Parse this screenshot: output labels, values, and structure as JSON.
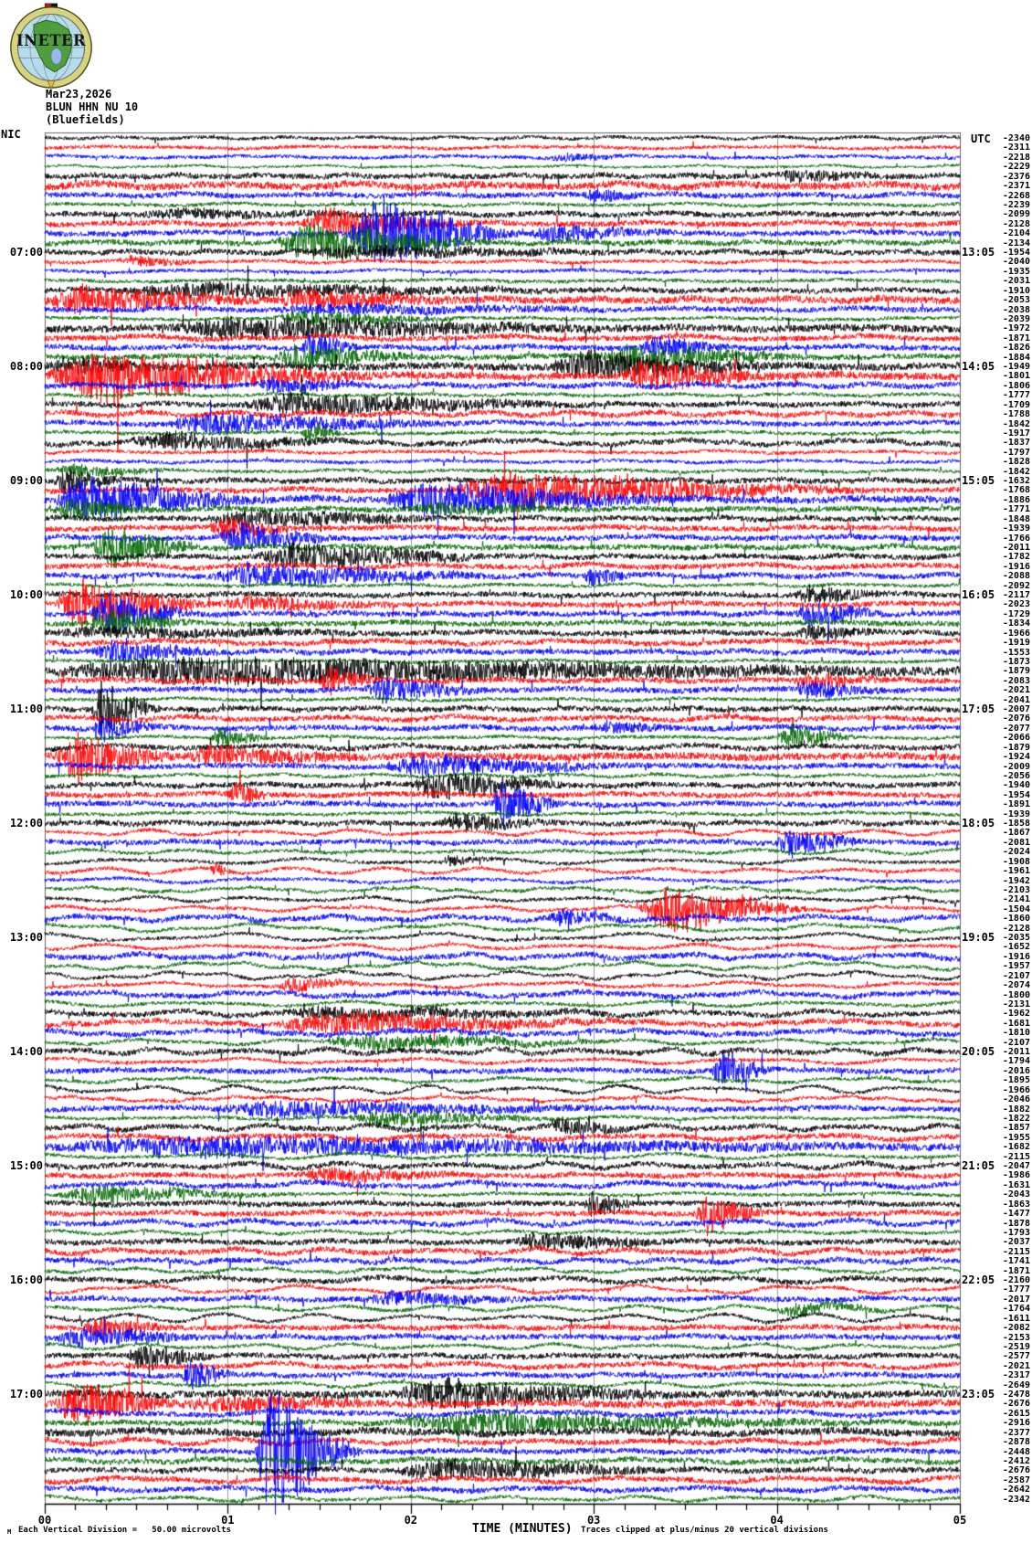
{
  "header": {
    "date": "Mar23,2026",
    "station": "BLUN HHN NU 10",
    "station_name": "(Bluefields)",
    "logo_text": "INETER"
  },
  "corner_labels": {
    "left": "NIC",
    "right": "UTC"
  },
  "left_times": [
    "07:00",
    "08:00",
    "09:00",
    "10:00",
    "11:00",
    "12:00",
    "13:00",
    "14:00",
    "15:00",
    "16:00",
    "17:00"
  ],
  "right_times": [
    "13:05",
    "14:05",
    "15:05",
    "16:05",
    "17:05",
    "18:05",
    "19:05",
    "20:05",
    "21:05",
    "22:05",
    "23:05"
  ],
  "axis": {
    "xlabel": "TIME (MINUTES)",
    "ticks": [
      "00",
      "01",
      "02",
      "03",
      "04",
      "05"
    ],
    "scale_note": "Each Vertical Division =   50.00 microvolts",
    "clip_note": "Traces clipped at plus/minus 20 vertical divisions",
    "corner_glyph": "M"
  },
  "colors": {
    "trace_cycle": [
      "#000000",
      "#ff0000",
      "#0000ff",
      "#006600"
    ],
    "grid": "#999999",
    "frame": "#666666",
    "axis": "#000000"
  },
  "chart_data": {
    "type": "line",
    "subtype": "seismogram-helicorder",
    "title": "BLUN HHN NU 10 (Bluefields) Mar23,2026",
    "xlabel": "TIME (MINUTES)",
    "x_ticks": [
      "00",
      "01",
      "02",
      "03",
      "04",
      "05"
    ],
    "minutes_per_row": 5,
    "rows": 144,
    "row_color_cycle": [
      "black",
      "red",
      "blue",
      "green"
    ],
    "scale": "Each Vertical Division = 50.00 microvolts",
    "clipping": "Traces clipped at plus/minus 20 vertical divisions",
    "trace_offsets": [
      -2340,
      -2311,
      -2218,
      -2229,
      -2376,
      -2371,
      -2268,
      -2239,
      -2099,
      -2128,
      -2104,
      -2134,
      -1954,
      -2040,
      -1935,
      -2031,
      -1910,
      -2053,
      -2038,
      -2039,
      -1972,
      -1871,
      -1826,
      -1884,
      -1949,
      -1801,
      -1806,
      -1777,
      -1709,
      -1788,
      -1842,
      -1917,
      -1837,
      -1797,
      -1828,
      -1842,
      -1632,
      -1768,
      -1886,
      -1771,
      -1848,
      -1939,
      -1766,
      -2011,
      -1782,
      -1916,
      -2088,
      -2092,
      -2117,
      -2023,
      -1729,
      -1834,
      -1966,
      -1919,
      -1553,
      -1873,
      -1879,
      -2083,
      -2021,
      -2041,
      -2007,
      -2076,
      -2077,
      -2066,
      -1879,
      -1924,
      -2009,
      -2056,
      -1940,
      -1954,
      -1891,
      -1939,
      -1858,
      -1867,
      -2081,
      -2024,
      -1908,
      -1961,
      -1942,
      -2103,
      -2141,
      -1504,
      -1860,
      -2128,
      -2035,
      -1652,
      -1916,
      -1957,
      -2107,
      -2074,
      -1800,
      -2131,
      -1962,
      -1681,
      -1810,
      -2107,
      -2011,
      -1794,
      -2016,
      -1895,
      -1966,
      -2046,
      -1882,
      -1822,
      -1857,
      -1955,
      -1682,
      -2115,
      -2047,
      -1986,
      -1631,
      -2043,
      -1863,
      -1477,
      -1878,
      -1793,
      -2037,
      -2115,
      -1741,
      -1871,
      -2160,
      -1777,
      -2017,
      -1764,
      -1611,
      -2082,
      -2153,
      -2519,
      -2577,
      -2021,
      -2317,
      -2649,
      -2478,
      -2676,
      -2615,
      -2916,
      -2377,
      -2878,
      -2448,
      -2412,
      -2676,
      -2587,
      -2642,
      -2342
    ],
    "activity": [
      [
        2,
        1
      ],
      [
        2,
        1
      ],
      [
        2,
        1,
        [
          550,
          650,
          4
        ]
      ],
      [
        1.5,
        1
      ],
      [
        3,
        1,
        [
          800,
          930,
          6
        ]
      ],
      [
        4,
        1.5
      ],
      [
        3,
        1,
        [
          590,
          660,
          8
        ]
      ],
      [
        2,
        1
      ],
      [
        3,
        1,
        [
          100,
          400,
          4
        ]
      ],
      [
        3,
        1,
        [
          280,
          480,
          18
        ]
      ],
      [
        3,
        1,
        [
          330,
          530,
          42
        ],
        [
          530,
          700,
          10
        ]
      ],
      [
        3,
        1,
        [
          250,
          500,
          22
        ]
      ],
      [
        3,
        1,
        [
          280,
          660,
          6
        ]
      ],
      [
        2,
        1,
        [
          80,
          180,
          6
        ]
      ],
      [
        2,
        1
      ],
      [
        2,
        1
      ],
      [
        3,
        1,
        [
          80,
          620,
          7
        ]
      ],
      [
        4,
        1,
        [
          0,
          250,
          16
        ],
        [
          250,
          470,
          10
        ]
      ],
      [
        3,
        1,
        [
          250,
          650,
          5
        ]
      ],
      [
        2,
        1,
        [
          250,
          470,
          9
        ]
      ],
      [
        4,
        1,
        [
          130,
          650,
          12
        ]
      ],
      [
        3,
        1.5
      ],
      [
        3,
        1,
        [
          280,
          350,
          16
        ],
        [
          650,
          760,
          12
        ]
      ],
      [
        3,
        1,
        [
          250,
          430,
          14
        ],
        [
          600,
          850,
          14
        ]
      ],
      [
        4,
        1,
        [
          0,
          150,
          8
        ],
        [
          550,
          810,
          16
        ]
      ],
      [
        4,
        1,
        [
          0,
          380,
          30
        ],
        [
          630,
          810,
          18
        ]
      ],
      [
        3,
        1,
        [
          230,
          370,
          8
        ]
      ],
      [
        2,
        1
      ],
      [
        3,
        1,
        [
          210,
          610,
          12
        ]
      ],
      [
        3,
        1.5
      ],
      [
        3,
        1,
        [
          130,
          470,
          12
        ]
      ],
      [
        2,
        1,
        [
          280,
          330,
          10
        ]
      ],
      [
        3,
        2,
        [
          90,
          350,
          10
        ]
      ],
      [
        2,
        1
      ],
      [
        2,
        1
      ],
      [
        2,
        1,
        [
          10,
          150,
          7
        ]
      ],
      [
        3,
        1,
        [
          10,
          90,
          14
        ]
      ],
      [
        3,
        1,
        [
          440,
          930,
          20
        ]
      ],
      [
        4,
        1,
        [
          10,
          250,
          24
        ],
        [
          370,
          710,
          20
        ]
      ],
      [
        3,
        1,
        [
          10,
          130,
          12
        ],
        [
          400,
          600,
          6
        ]
      ],
      [
        3,
        1,
        [
          180,
          470,
          10
        ]
      ],
      [
        3,
        1,
        [
          180,
          280,
          12
        ]
      ],
      [
        3,
        1,
        [
          190,
          330,
          18
        ]
      ],
      [
        3,
        1,
        [
          50,
          180,
          26
        ]
      ],
      [
        3,
        1,
        [
          230,
          510,
          16
        ]
      ],
      [
        3,
        1.5
      ],
      [
        3,
        1,
        [
          180,
          510,
          14
        ],
        [
          590,
          650,
          10
        ]
      ],
      [
        2,
        1
      ],
      [
        3,
        1,
        [
          820,
          930,
          10
        ]
      ],
      [
        3,
        1,
        [
          10,
          190,
          30
        ],
        [
          190,
          400,
          8
        ]
      ],
      [
        3,
        1,
        [
          50,
          170,
          24
        ],
        [
          820,
          930,
          14
        ]
      ],
      [
        3,
        1,
        [
          50,
          170,
          16
        ]
      ],
      [
        3,
        1,
        [
          0,
          400,
          5
        ],
        [
          820,
          930,
          8
        ]
      ],
      [
        3,
        1.5
      ],
      [
        3,
        1,
        [
          50,
          210,
          12
        ]
      ],
      [
        2,
        1
      ],
      [
        5,
        1,
        [
          10,
          990,
          14
        ]
      ],
      [
        3,
        1,
        [
          300,
          370,
          16
        ],
        [
          820,
          930,
          8
        ]
      ],
      [
        3,
        1,
        [
          350,
          490,
          14
        ],
        [
          820,
          930,
          10
        ]
      ],
      [
        2,
        1
      ],
      [
        3,
        1,
        [
          50,
          130,
          34
        ]
      ],
      [
        3,
        1.5
      ],
      [
        3,
        1,
        [
          50,
          130,
          14
        ],
        [
          600,
          700,
          6
        ]
      ],
      [
        2,
        1,
        [
          180,
          250,
          12
        ],
        [
          800,
          900,
          14
        ]
      ],
      [
        3,
        1.5
      ],
      [
        4,
        1,
        [
          10,
          150,
          28
        ],
        [
          150,
          370,
          10
        ]
      ],
      [
        3,
        1,
        [
          370,
          650,
          12
        ]
      ],
      [
        2,
        1
      ],
      [
        3,
        1,
        [
          400,
          590,
          16
        ]
      ],
      [
        3,
        1,
        [
          200,
          250,
          14
        ]
      ],
      [
        3,
        1,
        [
          490,
          570,
          28
        ]
      ],
      [
        2,
        1
      ],
      [
        3,
        1,
        [
          430,
          570,
          10
        ]
      ],
      [
        2,
        2
      ],
      [
        3,
        1,
        [
          800,
          900,
          18
        ]
      ],
      [
        2,
        2
      ],
      [
        2,
        2,
        [
          430,
          510,
          5
        ]
      ],
      [
        2,
        2,
        [
          180,
          210,
          8
        ]
      ],
      [
        2,
        2
      ],
      [
        2,
        2
      ],
      [
        2,
        2
      ],
      [
        2,
        2,
        [
          650,
          850,
          30
        ]
      ],
      [
        3,
        2,
        [
          550,
          650,
          8
        ]
      ],
      [
        2,
        3
      ],
      [
        2,
        3
      ],
      [
        2,
        2
      ],
      [
        3,
        2
      ],
      [
        2,
        3
      ],
      [
        2,
        3
      ],
      [
        2,
        2,
        [
          250,
          370,
          8
        ]
      ],
      [
        3,
        2
      ],
      [
        2,
        2
      ],
      [
        3,
        2,
        [
          250,
          650,
          6
        ]
      ],
      [
        3,
        2,
        [
          250,
          650,
          12
        ]
      ],
      [
        3,
        2
      ],
      [
        2,
        2,
        [
          300,
          650,
          10
        ]
      ],
      [
        3,
        2
      ],
      [
        2,
        2
      ],
      [
        3,
        1,
        [
          730,
          800,
          26
        ]
      ],
      [
        2,
        2
      ],
      [
        2,
        3
      ],
      [
        2,
        2
      ],
      [
        3,
        1,
        [
          180,
          650,
          8
        ]
      ],
      [
        2,
        1,
        [
          330,
          570,
          9
        ]
      ],
      [
        3,
        2,
        [
          550,
          650,
          10
        ]
      ],
      [
        3,
        2
      ],
      [
        4,
        1,
        [
          10,
          990,
          10
        ]
      ],
      [
        2,
        2
      ],
      [
        3,
        2
      ],
      [
        3,
        1,
        [
          280,
          470,
          8
        ]
      ],
      [
        3,
        2
      ],
      [
        2,
        1,
        [
          10,
          280,
          10
        ]
      ],
      [
        3,
        1,
        [
          590,
          650,
          16
        ]
      ],
      [
        3,
        1,
        [
          710,
          800,
          24
        ]
      ],
      [
        3,
        2
      ],
      [
        2,
        2
      ],
      [
        3,
        1,
        [
          510,
          710,
          10
        ]
      ],
      [
        3,
        2
      ],
      [
        3,
        1.5
      ],
      [
        2,
        2
      ],
      [
        3,
        2
      ],
      [
        2,
        3
      ],
      [
        3,
        1,
        [
          350,
          550,
          7
        ]
      ],
      [
        2,
        2,
        [
          800,
          950,
          8
        ]
      ],
      [
        2,
        3
      ],
      [
        3,
        1,
        [
          40,
          150,
          10
        ]
      ],
      [
        3,
        1,
        [
          10,
          190,
          12
        ]
      ],
      [
        2,
        2
      ],
      [
        3,
        1,
        [
          90,
          190,
          16
        ]
      ],
      [
        3,
        2
      ],
      [
        3,
        1,
        [
          150,
          210,
          18
        ]
      ],
      [
        2,
        2
      ],
      [
        4,
        1,
        [
          380,
          710,
          16
        ]
      ],
      [
        4,
        1,
        [
          10,
          150,
          28
        ],
        [
          150,
          400,
          8
        ]
      ],
      [
        3,
        2
      ],
      [
        3,
        1,
        [
          380,
          930,
          12
        ]
      ],
      [
        4,
        1.5
      ],
      [
        3,
        2
      ],
      [
        3,
        1,
        [
          230,
          350,
          85
        ]
      ],
      [
        3,
        1.5
      ],
      [
        3,
        1,
        [
          380,
          710,
          12
        ]
      ],
      [
        3,
        2
      ],
      [
        3,
        1.5
      ],
      [
        2,
        2
      ]
    ]
  }
}
